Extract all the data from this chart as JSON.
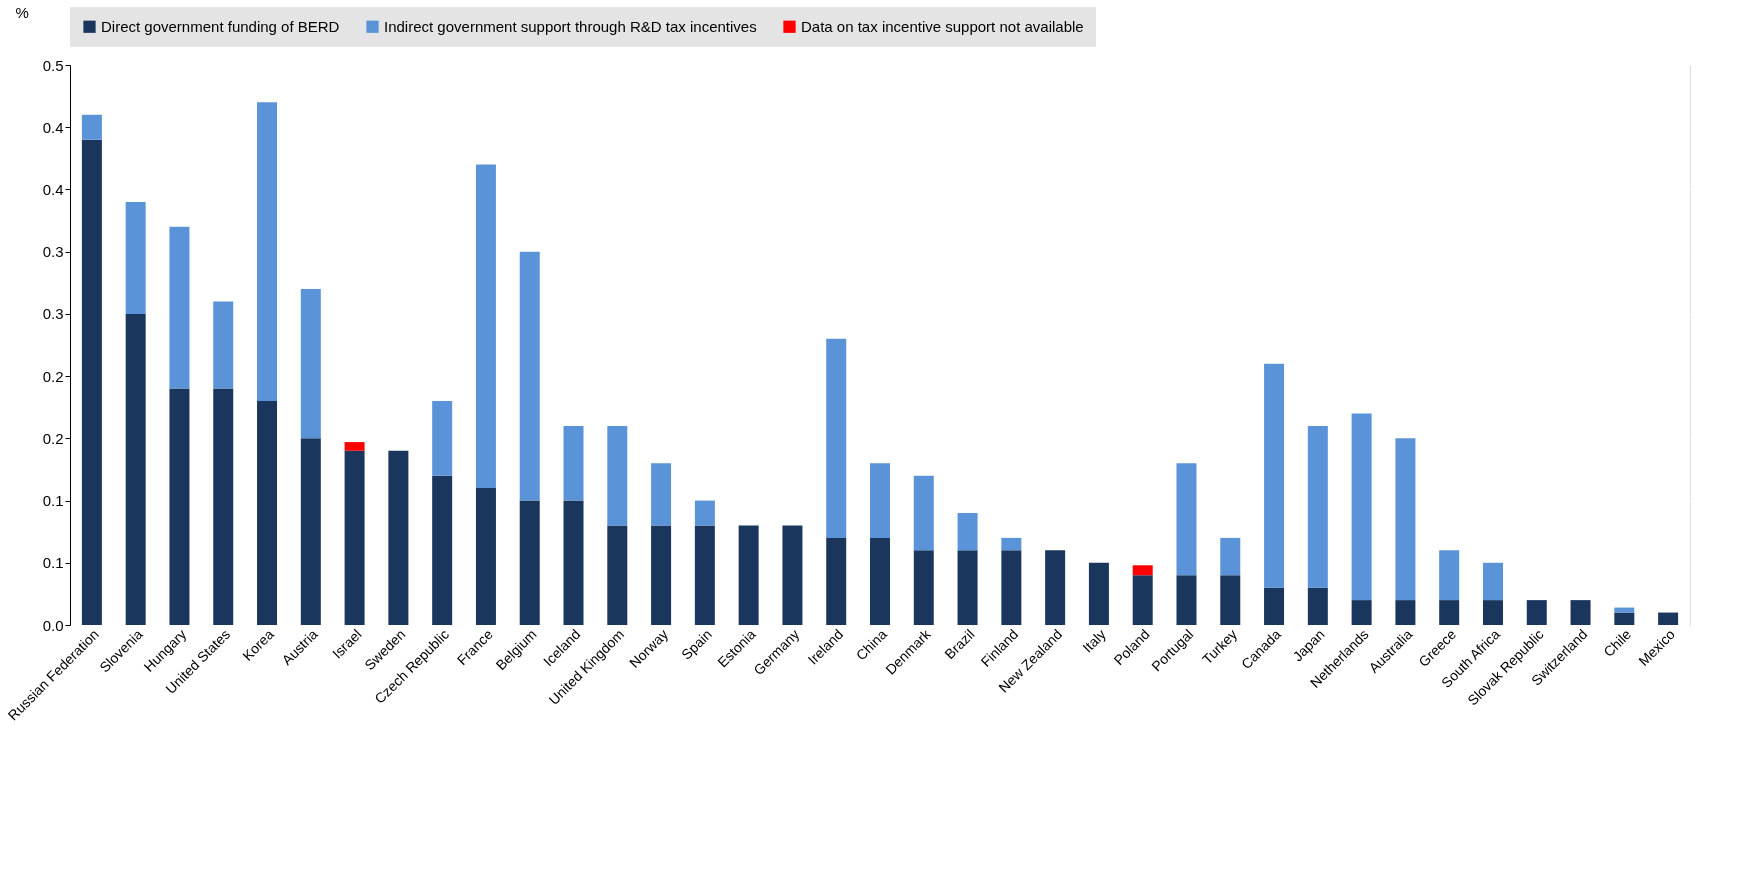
{
  "chart_data": {
    "type": "bar",
    "stacked": true,
    "ylabel": "%",
    "legend": "top",
    "grid": true,
    "categories": [
      "Russian Federation",
      "Slovenia",
      "Hungary",
      "United States",
      "Korea",
      "Austria",
      "Israel",
      "Sweden",
      "Czech Republic",
      "France",
      "Belgium",
      "Iceland",
      "United Kingdom",
      "Norway",
      "Spain",
      "Estonia",
      "Germany",
      "Ireland",
      "China",
      "Denmark",
      "Brazil",
      "Finland",
      "New Zealand",
      "Italy",
      "Poland",
      "Portugal",
      "Turkey",
      "Canada",
      "Japan",
      "Netherlands",
      "Australia",
      "Greece",
      "South Africa",
      "Slovak Republic",
      "Switzerland",
      "Chile",
      "Mexico"
    ],
    "series": [
      {
        "name": "Direct government funding of BERD",
        "color": "#1b365d",
        "values": [
          0.39,
          0.25,
          0.19,
          0.19,
          0.18,
          0.15,
          0.14,
          0.14,
          0.12,
          0.11,
          0.1,
          0.1,
          0.08,
          0.08,
          0.08,
          0.08,
          0.08,
          0.07,
          0.07,
          0.06,
          0.06,
          0.06,
          0.06,
          0.05,
          0.04,
          0.04,
          0.04,
          0.03,
          0.03,
          0.02,
          0.02,
          0.02,
          0.02,
          0.02,
          0.02,
          0.01,
          0.01
        ]
      },
      {
        "name": "Indirect government support through R&D tax incentives",
        "color": "#5b93d8",
        "values": [
          0.02,
          0.09,
          0.13,
          0.07,
          0.24,
          0.12,
          null,
          null,
          0.06,
          0.26,
          0.2,
          0.06,
          0.08,
          0.05,
          0.02,
          null,
          null,
          0.16,
          0.06,
          0.06,
          0.03,
          0.01,
          null,
          null,
          null,
          0.09,
          0.03,
          0.18,
          0.13,
          0.15,
          0.13,
          0.04,
          0.03,
          null,
          null,
          0.004,
          null
        ]
      },
      {
        "name": "Data on tax incentive support not available",
        "color": "#ff0000",
        "values": [
          null,
          null,
          null,
          null,
          null,
          null,
          0.007,
          null,
          null,
          null,
          null,
          null,
          null,
          null,
          null,
          null,
          null,
          null,
          null,
          null,
          null,
          null,
          null,
          null,
          0.008,
          null,
          null,
          null,
          null,
          null,
          null,
          null,
          null,
          null,
          null,
          null,
          null
        ]
      }
    ],
    "ylim": [
      0,
      0.45
    ],
    "yticks": [
      {
        "value": 0,
        "label": "0.0"
      },
      {
        "value": 0.05,
        "label": "0.1"
      },
      {
        "value": 0.1,
        "label": "0.1"
      },
      {
        "value": 0.15,
        "label": "0.2"
      },
      {
        "value": 0.2,
        "label": "0.2"
      },
      {
        "value": 0.25,
        "label": "0.3"
      },
      {
        "value": 0.3,
        "label": "0.3"
      },
      {
        "value": 0.35,
        "label": "0.4"
      },
      {
        "value": 0.4,
        "label": "0.4"
      },
      {
        "value": 0.45,
        "label": "0.5"
      }
    ]
  }
}
